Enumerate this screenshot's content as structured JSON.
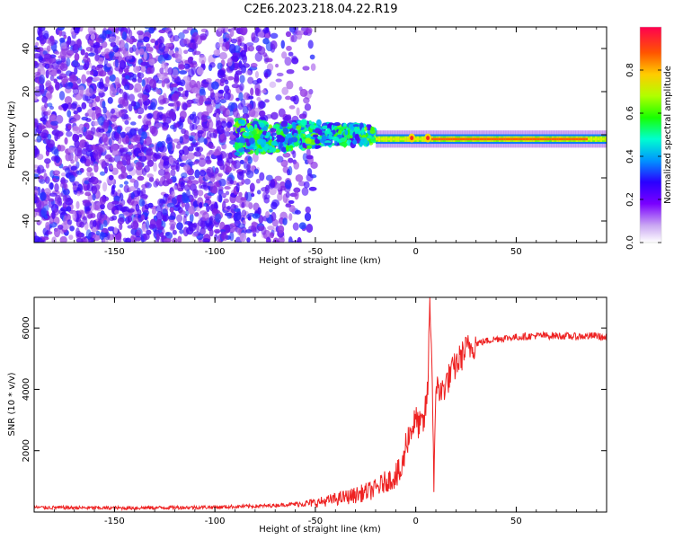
{
  "title": "C2E6.2023.218.04.22.R19",
  "chart_data": [
    {
      "type": "heatmap",
      "xlabel": "Height of straight line (km)",
      "ylabel": "Frequency (Hz)",
      "xlim": [
        -190,
        95
      ],
      "ylim": [
        -50,
        50
      ],
      "xticks": [
        -150,
        -100,
        -50,
        0,
        50
      ],
      "yticks": [
        -40,
        -20,
        0,
        20,
        40
      ],
      "colorbar": {
        "label": "Normalized spectral amplitude",
        "range": [
          0.0,
          1.0
        ],
        "ticks": [
          0.0,
          0.2,
          0.4,
          0.6,
          0.8
        ],
        "colormap": [
          "#ffffff",
          "#8a2be2",
          "#3b00ff",
          "#00b3ff",
          "#00ffc0",
          "#22ff00",
          "#c8ff00",
          "#ffd000",
          "#ff5a00",
          "#ff0040"
        ]
      },
      "description_points": {
        "noise_region_km": [
          -190,
          -90
        ],
        "dispersing_region_km": [
          -90,
          -20
        ],
        "tone_region_km": [
          -20,
          95
        ],
        "tone_frequency_hz": -2,
        "tone_peaks_km": [
          -2,
          6
        ]
      }
    },
    {
      "type": "line",
      "xlabel": "Height of straight line (km)",
      "ylabel": "SNR (10 * v/v)",
      "xlim": [
        -190,
        95
      ],
      "ylim": [
        0,
        7000
      ],
      "xticks": [
        -150,
        -100,
        -50,
        0,
        50
      ],
      "yticks": [
        2000,
        4000,
        6000
      ],
      "series": [
        {
          "color": "#ee2222",
          "x": [
            -190,
            -150,
            -100,
            -75,
            -60,
            -50,
            -40,
            -30,
            -20,
            -15,
            -10,
            -7,
            -5,
            -3,
            0,
            2,
            4,
            6,
            7,
            8,
            9,
            10,
            11,
            12,
            15,
            20,
            25,
            30,
            40,
            50,
            60,
            70,
            80,
            90,
            95
          ],
          "y": [
            150,
            130,
            160,
            200,
            260,
            300,
            420,
            550,
            750,
            1000,
            1150,
            1300,
            2200,
            2600,
            3000,
            2800,
            2900,
            4000,
            7000,
            5000,
            1100,
            3500,
            4500,
            3800,
            4200,
            4800,
            5300,
            5500,
            5650,
            5700,
            5750,
            5750,
            5720,
            5750,
            5650
          ]
        }
      ]
    }
  ]
}
